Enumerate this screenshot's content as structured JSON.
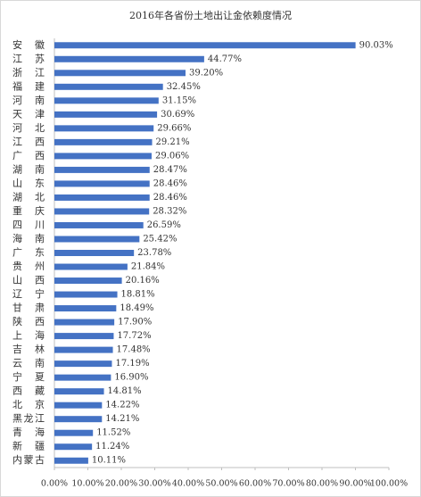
{
  "chart_data": {
    "type": "hbar",
    "title": "2016年各省份土地出让金依赖度情况",
    "categories": [
      "安徽",
      "江苏",
      "浙江",
      "福建",
      "河南",
      "天津",
      "河北",
      "江西",
      "广西",
      "湖南",
      "山东",
      "湖北",
      "重庆",
      "四川",
      "海南",
      "广东",
      "贵州",
      "山西",
      "辽宁",
      "甘肃",
      "陕西",
      "上海",
      "吉林",
      "云南",
      "宁夏",
      "西藏",
      "北京",
      "黑龙江",
      "青海",
      "新疆",
      "内蒙古"
    ],
    "values": [
      90.03,
      44.77,
      39.2,
      32.45,
      31.15,
      30.69,
      29.66,
      29.21,
      29.06,
      28.47,
      28.46,
      28.46,
      28.32,
      26.59,
      25.42,
      23.78,
      21.84,
      20.16,
      18.81,
      18.49,
      17.9,
      17.72,
      17.48,
      17.19,
      16.9,
      14.81,
      14.22,
      14.21,
      11.52,
      11.24,
      10.11
    ],
    "value_labels": [
      "90.03%",
      "44.77%",
      "39.20%",
      "32.45%",
      "31.15%",
      "30.69%",
      "29.66%",
      "29.21%",
      "29.06%",
      "28.47%",
      "28.46%",
      "28.46%",
      "28.32%",
      "26.59%",
      "25.42%",
      "23.78%",
      "21.84%",
      "20.16%",
      "18.81%",
      "18.49%",
      "17.90%",
      "17.72%",
      "17.48%",
      "17.19%",
      "16.90%",
      "14.81%",
      "14.22%",
      "14.21%",
      "11.52%",
      "11.24%",
      "10.11%"
    ],
    "color": "#4472c4",
    "xlim": [
      0,
      100
    ],
    "xticks": [
      {
        "value": 0,
        "label": "0.00%"
      },
      {
        "value": 10,
        "label": "10.00%"
      },
      {
        "value": 20,
        "label": "20.00%"
      },
      {
        "value": 30,
        "label": "30.00%"
      },
      {
        "value": 40,
        "label": "40.00%"
      },
      {
        "value": 50,
        "label": "50.00%"
      },
      {
        "value": 60,
        "label": "60.00%"
      },
      {
        "value": 70,
        "label": "70.00%"
      },
      {
        "value": 80,
        "label": "80.00%"
      },
      {
        "value": 90,
        "label": "90.00%"
      },
      {
        "value": 100,
        "label": "100.00%"
      }
    ]
  }
}
